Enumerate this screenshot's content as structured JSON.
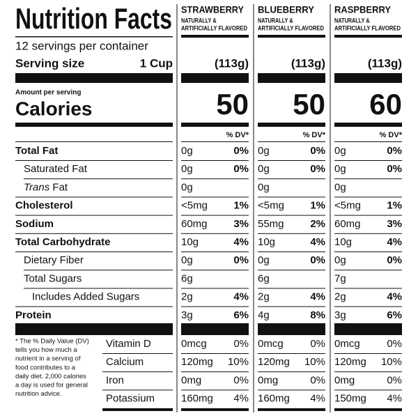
{
  "title": "Nutrition Facts",
  "servings": "12 servings per container",
  "serving_size_label": "Serving size",
  "serving_size": "1 Cup",
  "amount_per_serving": "Amount per serving",
  "calories_label": "Calories",
  "dv_header": "% DV*",
  "nutrients": [
    {
      "label": "Total Fat",
      "bold": true,
      "indent": 0
    },
    {
      "label": "Saturated Fat",
      "bold": false,
      "indent": 1
    },
    {
      "italic": "Trans",
      "label": "Fat",
      "bold": false,
      "indent": 1
    },
    {
      "label": "Cholesterol",
      "bold": true,
      "indent": 0
    },
    {
      "label": "Sodium",
      "bold": true,
      "indent": 0
    },
    {
      "label": "Total Carbohydrate",
      "bold": true,
      "indent": 0
    },
    {
      "label": "Dietary Fiber",
      "bold": false,
      "indent": 1
    },
    {
      "label": "Total Sugars",
      "bold": false,
      "indent": 1
    },
    {
      "label": "Includes Added Sugars",
      "bold": false,
      "indent": 2
    },
    {
      "label": "Protein",
      "bold": true,
      "indent": 0
    }
  ],
  "footnote": [
    "* The % Daily Value (DV)",
    "tells you how much a",
    "nutrient in a serving of",
    "food contributes to a",
    "daily diet. 2,000 calories",
    "a day is used for general",
    "nutrition advice."
  ],
  "vitamins": [
    "Vitamin D",
    "Calcium",
    "Iron",
    "Potassium"
  ],
  "products": [
    {
      "name": "STRAWBERRY",
      "flavor": [
        "NATURALLY &",
        "ARTIFICIALLY FLAVORED"
      ],
      "serving_grams": "(113g)",
      "calories": 50,
      "rows": [
        {
          "amount": "0g",
          "dv": "0%"
        },
        {
          "amount": "0g",
          "dv": "0%"
        },
        {
          "amount": "0g"
        },
        {
          "amount": "<5mg",
          "dv": "1%"
        },
        {
          "amount": "60mg",
          "dv": "3%"
        },
        {
          "amount": "10g",
          "dv": "4%"
        },
        {
          "amount": "0g",
          "dv": "0%"
        },
        {
          "amount": "6g"
        },
        {
          "amount": "2g",
          "dv": "4%"
        },
        {
          "amount": "3g",
          "dv": "6%"
        }
      ],
      "vitamins": [
        {
          "amount": "0mcg",
          "dv": "0%"
        },
        {
          "amount": "120mg",
          "dv": "10%"
        },
        {
          "amount": "0mg",
          "dv": "0%"
        },
        {
          "amount": "160mg",
          "dv": "4%"
        }
      ]
    },
    {
      "name": "BLUEBERRY",
      "flavor": [
        "NATURALLY &",
        "ARTIFICIALLY FLAVORED"
      ],
      "serving_grams": "(113g)",
      "calories": 50,
      "rows": [
        {
          "amount": "0g",
          "dv": "0%"
        },
        {
          "amount": "0g",
          "dv": "0%"
        },
        {
          "amount": "0g"
        },
        {
          "amount": "<5mg",
          "dv": "1%"
        },
        {
          "amount": "55mg",
          "dv": "2%"
        },
        {
          "amount": "10g",
          "dv": "4%"
        },
        {
          "amount": "0g",
          "dv": "0%"
        },
        {
          "amount": "6g"
        },
        {
          "amount": "2g",
          "dv": "4%"
        },
        {
          "amount": "4g",
          "dv": "8%"
        }
      ],
      "vitamins": [
        {
          "amount": "0mcg",
          "dv": "0%"
        },
        {
          "amount": "120mg",
          "dv": "10%"
        },
        {
          "amount": "0mg",
          "dv": "0%"
        },
        {
          "amount": "160mg",
          "dv": "4%"
        }
      ]
    },
    {
      "name": "RASPBERRY",
      "flavor": [
        "NATURALLY &",
        "ARTIFICIALLY FLAVORED"
      ],
      "serving_grams": "(113g)",
      "calories": 60,
      "rows": [
        {
          "amount": "0g",
          "dv": "0%"
        },
        {
          "amount": "0g",
          "dv": "0%"
        },
        {
          "amount": "0g"
        },
        {
          "amount": "<5mg",
          "dv": "1%"
        },
        {
          "amount": "60mg",
          "dv": "3%"
        },
        {
          "amount": "10g",
          "dv": "4%"
        },
        {
          "amount": "0g",
          "dv": "0%"
        },
        {
          "amount": "7g"
        },
        {
          "amount": "2g",
          "dv": "4%"
        },
        {
          "amount": "3g",
          "dv": "6%"
        }
      ],
      "vitamins": [
        {
          "amount": "0mcg",
          "dv": "0%"
        },
        {
          "amount": "120mg",
          "dv": "10%"
        },
        {
          "amount": "0mg",
          "dv": "0%"
        },
        {
          "amount": "150mg",
          "dv": "4%"
        }
      ]
    }
  ]
}
